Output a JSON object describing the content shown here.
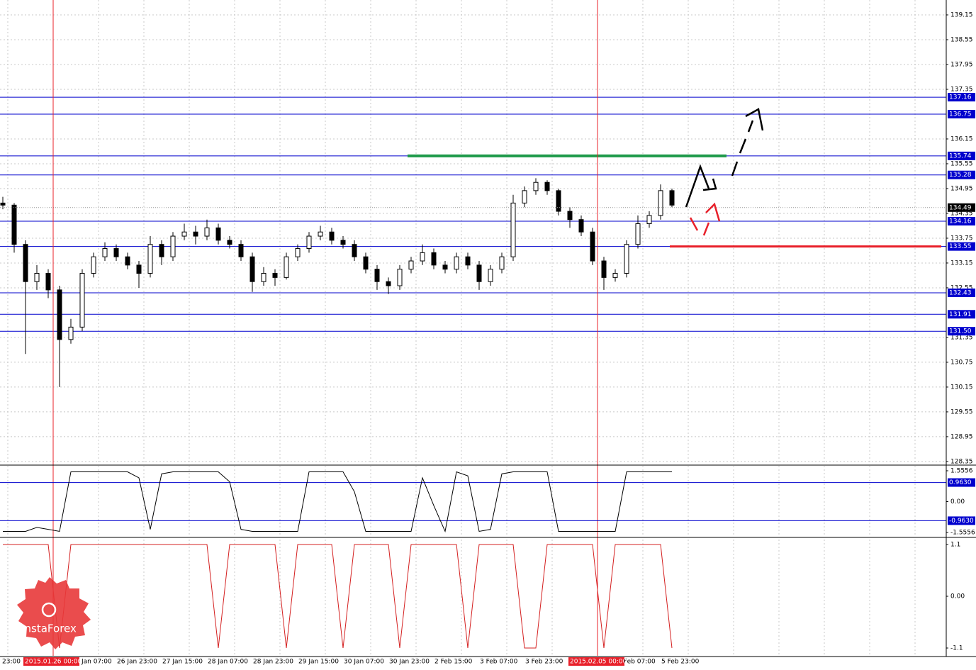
{
  "chart_data": [
    {
      "type": "candlestick",
      "ylim": [
        128.28,
        139.51
      ],
      "yticks": [
        139.15,
        138.55,
        137.95,
        137.35,
        136.15,
        135.55,
        134.95,
        134.35,
        133.75,
        133.15,
        132.55,
        131.35,
        130.75,
        130.15,
        129.55,
        128.95,
        128.35
      ],
      "levels": [
        137.16,
        136.75,
        135.74,
        135.28,
        134.16,
        133.55,
        132.43,
        131.91,
        {
          "value": 131.5,
          "label": "131.50"
        }
      ],
      "level_color": "#0000cd",
      "current_price": 134.49,
      "resistance_line": {
        "value": 135.74,
        "color": "#1e9a4a"
      },
      "support_line": {
        "value": 133.55,
        "color": "#e8202a"
      },
      "marker_color": "#e8202a",
      "x_labels": [
        "23:00",
        "Jan 07:00",
        "26 Jan 23:00",
        "27 Jan 15:00",
        "28 Jan 07:00",
        "28 Jan 23:00",
        "29 Jan 15:00",
        "30 Jan 07:00",
        "30 Jan 23:00",
        "2 Feb 15:00",
        "3 Feb 07:00",
        "3 Feb 23:00",
        "Feb 07:00",
        "5 Feb 23:00"
      ],
      "markers": [
        "2015.01.26 00:00",
        "2015.02.05 00:00"
      ],
      "grid": true,
      "open": [
        134.6,
        134.55,
        133.6,
        132.7,
        132.9,
        132.5,
        131.3,
        131.6,
        132.9,
        133.3,
        133.5,
        133.3,
        133.1,
        132.9,
        133.6,
        133.3,
        133.8,
        133.9,
        133.8,
        134.0,
        133.7,
        133.6,
        133.3,
        132.7,
        132.9,
        132.8,
        133.3,
        133.5,
        133.8,
        133.9,
        133.7,
        133.6,
        133.3,
        133.0,
        132.7,
        132.6,
        133.0,
        133.2,
        133.4,
        133.1,
        133.0,
        133.3,
        133.1,
        132.7,
        133.0,
        133.3,
        134.6,
        134.9,
        135.1,
        134.9,
        134.4,
        134.2,
        133.9,
        133.2,
        132.8,
        132.9,
        133.6,
        134.1,
        134.3,
        134.9
      ],
      "high": [
        134.75,
        134.6,
        133.7,
        133.1,
        133.0,
        132.6,
        131.8,
        133.0,
        133.4,
        133.65,
        133.6,
        133.4,
        133.2,
        133.8,
        133.7,
        133.9,
        134.1,
        134.05,
        134.2,
        134.1,
        133.8,
        133.7,
        133.4,
        133.05,
        133.0,
        133.4,
        133.6,
        133.9,
        134.05,
        134.0,
        133.8,
        133.7,
        133.4,
        133.1,
        132.8,
        133.1,
        133.3,
        133.6,
        133.5,
        133.2,
        133.4,
        133.4,
        133.2,
        133.1,
        133.4,
        134.8,
        135.0,
        135.2,
        135.15,
        134.95,
        134.5,
        134.3,
        134.0,
        133.3,
        133.0,
        133.7,
        134.3,
        134.4,
        135.05,
        134.95
      ],
      "low": [
        134.45,
        133.4,
        130.95,
        132.5,
        132.3,
        130.15,
        131.2,
        131.5,
        132.8,
        133.2,
        133.2,
        133.0,
        132.55,
        132.8,
        133.1,
        133.2,
        133.7,
        133.6,
        133.7,
        133.6,
        133.5,
        133.2,
        132.45,
        132.6,
        132.6,
        132.75,
        133.2,
        133.4,
        133.7,
        133.6,
        133.5,
        133.2,
        132.9,
        132.5,
        132.4,
        132.5,
        132.9,
        133.1,
        133.0,
        132.9,
        132.9,
        133.0,
        132.5,
        132.6,
        132.9,
        133.2,
        134.5,
        134.8,
        134.8,
        134.3,
        134.0,
        133.8,
        133.1,
        132.5,
        132.7,
        132.8,
        133.5,
        134.0,
        134.2,
        134.5
      ],
      "close": [
        134.55,
        133.6,
        132.7,
        132.9,
        132.5,
        131.3,
        131.6,
        132.9,
        133.3,
        133.5,
        133.3,
        133.1,
        132.9,
        133.6,
        133.3,
        133.8,
        133.9,
        133.8,
        134.0,
        133.7,
        133.6,
        133.3,
        132.7,
        132.9,
        132.8,
        133.3,
        133.5,
        133.8,
        133.9,
        133.7,
        133.6,
        133.3,
        133.0,
        132.7,
        132.6,
        133.0,
        133.2,
        133.4,
        133.1,
        133.0,
        133.3,
        133.1,
        132.7,
        133.0,
        133.3,
        134.6,
        134.9,
        135.1,
        134.9,
        134.4,
        134.2,
        133.9,
        133.2,
        132.8,
        132.9,
        133.6,
        134.1,
        134.3,
        134.9,
        134.55
      ],
      "logo": "InstaForex"
    },
    {
      "type": "line",
      "ylim": [
        -1.77,
        1.806
      ],
      "yticks": [
        1.5556,
        {
          "value": 0,
          "label": "0.00"
        },
        -1.5556
      ],
      "levels": [
        {
          "value": 0.963,
          "label": "0.9630"
        },
        {
          "value": -0.963,
          "label": "-0.9630"
        }
      ],
      "level_color": "#0000cd",
      "color": "#000000",
      "values": [
        -1.5,
        -1.5,
        -1.5,
        -1.3,
        -1.4,
        -1.5,
        1.5,
        1.5,
        1.5,
        1.5,
        1.5,
        1.5,
        1.2,
        -1.4,
        1.4,
        1.5,
        1.5,
        1.5,
        1.5,
        1.5,
        1.0,
        -1.4,
        -1.5,
        -1.5,
        -1.5,
        -1.5,
        -1.5,
        1.5,
        1.5,
        1.5,
        1.5,
        0.5,
        -1.5,
        -1.5,
        -1.5,
        -1.5,
        -1.5,
        1.2,
        -0.2,
        -1.5,
        1.5,
        1.3,
        -1.5,
        -1.4,
        1.4,
        1.5,
        1.5,
        1.5,
        1.5,
        -1.5,
        -1.5,
        -1.5,
        -1.5,
        -1.5,
        -1.5,
        1.5,
        1.5,
        1.5,
        1.5,
        1.5
      ]
    },
    {
      "type": "line",
      "ylim": [
        -1.266,
        1.206
      ],
      "yticks": [
        1.1,
        {
          "value": 0,
          "label": "0.00"
        },
        -1.1
      ],
      "levels": [],
      "color": "#d42020",
      "values": [
        1.1,
        1.1,
        1.1,
        1.1,
        1.1,
        -1.1,
        1.1,
        1.1,
        1.1,
        1.1,
        1.1,
        1.1,
        1.1,
        1.1,
        1.1,
        1.1,
        1.1,
        1.1,
        1.1,
        -1.1,
        1.1,
        1.1,
        1.1,
        1.1,
        1.1,
        -1.1,
        1.1,
        1.1,
        1.1,
        1.1,
        -1.1,
        1.1,
        1.1,
        1.1,
        1.1,
        -1.1,
        1.1,
        1.1,
        1.1,
        1.1,
        1.1,
        -1.1,
        1.1,
        1.1,
        1.1,
        1.1,
        -1.1,
        -1.1,
        1.1,
        1.1,
        1.1,
        1.1,
        1.1,
        -1.1,
        1.1,
        1.1,
        1.1,
        1.1,
        1.1,
        -1.1
      ]
    }
  ]
}
